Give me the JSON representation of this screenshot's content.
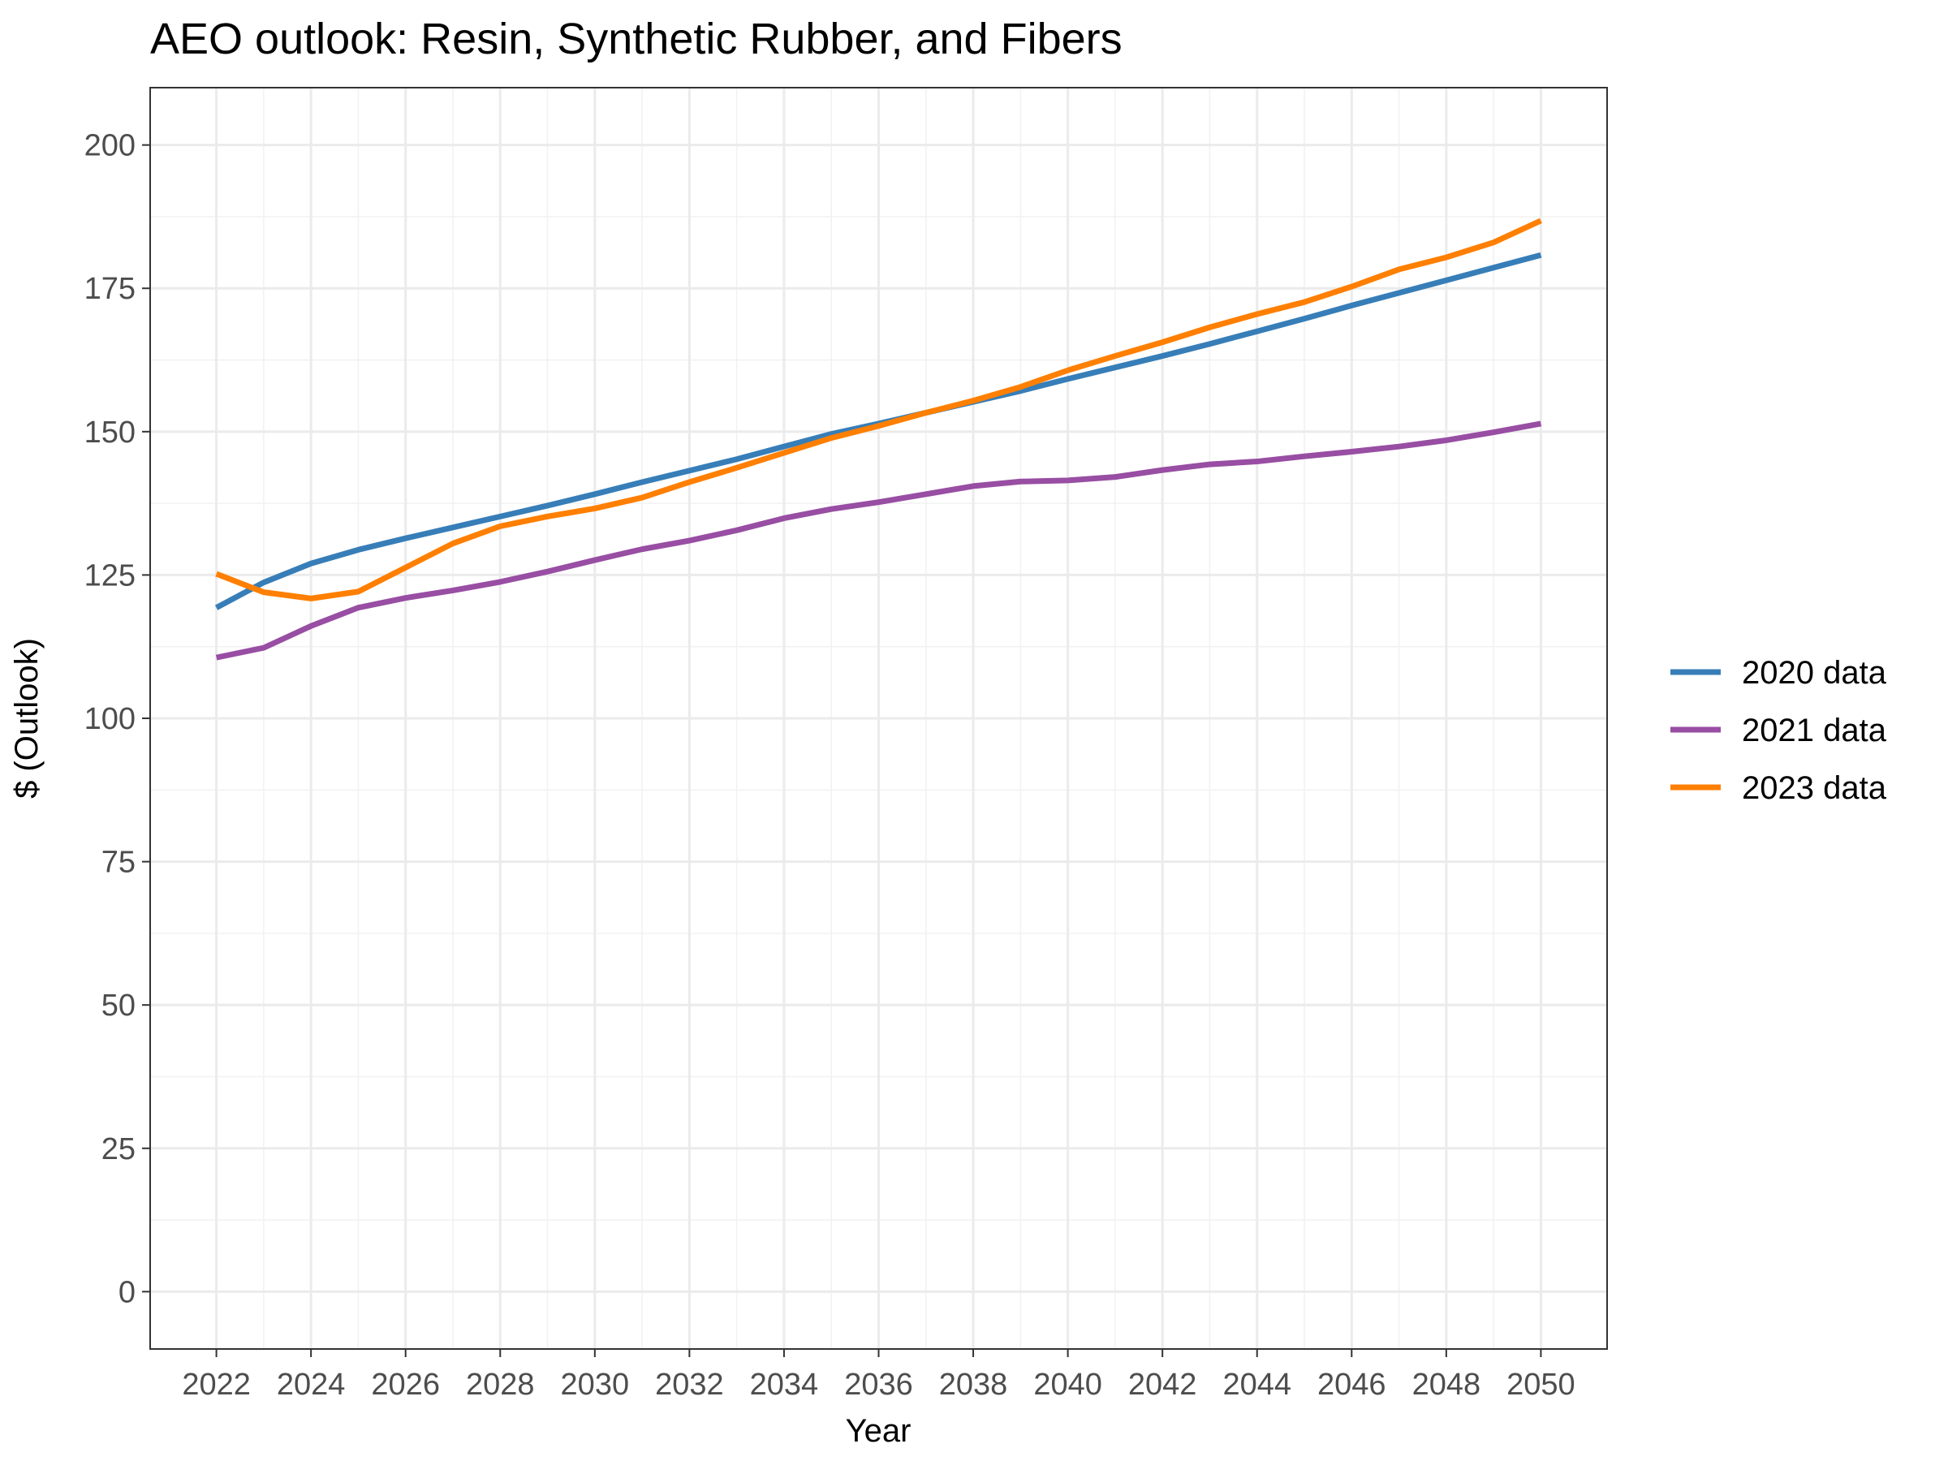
{
  "chart_data": {
    "type": "line",
    "title": "AEO outlook: Resin, Synthetic Rubber, and Fibers",
    "xlabel": "Year",
    "ylabel": "$ (Outlook)",
    "xlim": [
      2020.6,
      2051.4
    ],
    "ylim": [
      -10,
      210
    ],
    "x_ticks": [
      2022,
      2024,
      2026,
      2028,
      2030,
      2032,
      2034,
      2036,
      2038,
      2040,
      2042,
      2044,
      2046,
      2048,
      2050
    ],
    "y_ticks": [
      0,
      25,
      50,
      75,
      100,
      125,
      150,
      175,
      200
    ],
    "grid": true,
    "legend_position": "right",
    "x": [
      2022,
      2023,
      2024,
      2025,
      2026,
      2027,
      2028,
      2029,
      2030,
      2031,
      2032,
      2033,
      2034,
      2035,
      2036,
      2037,
      2038,
      2039,
      2040,
      2041,
      2042,
      2043,
      2044,
      2045,
      2046,
      2047,
      2048,
      2049,
      2050
    ],
    "series": [
      {
        "name": "2020 data",
        "color": "#377eb8",
        "values": [
          119.3,
          123.7,
          127.0,
          129.4,
          131.4,
          133.3,
          135.2,
          137.1,
          139.1,
          141.2,
          143.2,
          145.2,
          147.4,
          149.6,
          151.4,
          153.3,
          155.2,
          157.1,
          159.2,
          161.2,
          163.2,
          165.3,
          167.5,
          169.7,
          172.0,
          174.2,
          176.4,
          178.6,
          180.8
        ]
      },
      {
        "name": "2021 data",
        "color": "#984ea3",
        "values": [
          110.6,
          112.3,
          116.1,
          119.3,
          121.0,
          122.3,
          123.8,
          125.6,
          127.6,
          129.5,
          131.0,
          132.8,
          134.9,
          136.5,
          137.7,
          139.1,
          140.5,
          141.3,
          141.5,
          142.1,
          143.3,
          144.3,
          144.8,
          145.7,
          146.5,
          147.4,
          148.5,
          149.9,
          151.4
        ]
      },
      {
        "name": "2023 data",
        "color": "#ff7f00",
        "values": [
          125.2,
          122.0,
          120.9,
          122.1,
          126.3,
          130.5,
          133.5,
          135.2,
          136.6,
          138.5,
          141.2,
          143.7,
          146.3,
          148.9,
          151.0,
          153.3,
          155.4,
          157.8,
          160.7,
          163.2,
          165.6,
          168.2,
          170.5,
          172.6,
          175.3,
          178.3,
          180.4,
          183.0,
          186.8
        ]
      }
    ]
  }
}
